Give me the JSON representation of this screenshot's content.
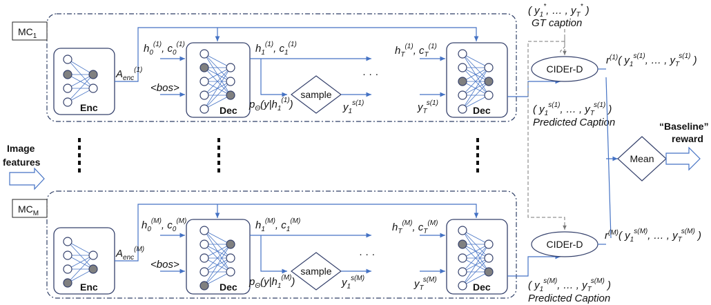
{
  "mc_top": {
    "label": "MC",
    "sub": "1"
  },
  "mc_bottom": {
    "label": "MC",
    "sub": "M"
  },
  "image_features": [
    "Image",
    "features"
  ],
  "baseline_reward": [
    "“Baseline”",
    "reward"
  ],
  "mean_label": "Mean",
  "ciderd_top": "CIDEr-D",
  "ciderd_bottom": "CIDEr-D",
  "gt_tuple": "( y1*, … , yT* )",
  "gt_caption": "GT caption",
  "predicted_caption_top": "Predicted Caption",
  "predicted_caption_bottom": "Predicted Caption",
  "top": {
    "enc": "Enc",
    "dec1": "Dec",
    "decT": "Dec",
    "sample": "sample",
    "bos": "<bos>",
    "a_enc": "Aenc(1)",
    "h0c0": "h0(1), c0(1)",
    "h1c1": "h1(1), c1(1)",
    "hTcT": "hT(1), cT(1)",
    "p": "pΘ(y|h1(1))",
    "y1": "y1s(1)",
    "yT": "yTs(1)",
    "pred_tuple": "( y1s(1), … , yTs(1) )",
    "reward": "r(1)( y1s(1), … , yTs(1) )"
  },
  "bottom": {
    "enc": "Enc",
    "dec1": "Dec",
    "decT": "Dec",
    "sample": "sample",
    "bos": "<bos>",
    "a_enc": "Aenc(M)",
    "h0c0": "h0(M), c0(M)",
    "h1c1": "h1(M), c1(M)",
    "hTcT": "hT(M), cT(M)",
    "p": "pΘ(y|h1(M))",
    "y1": "y1s(M)",
    "yT": "yTs(M)",
    "pred_tuple": "( y1s(M), … , yTs(M) )",
    "reward": "r(M)( y1s(M), … , yTs(M) )"
  },
  "ellipsis": "· · ·",
  "colors": {
    "line": "#4472c4",
    "dash": "#2f3f66",
    "filled": "#808080",
    "box": "#34406b"
  }
}
